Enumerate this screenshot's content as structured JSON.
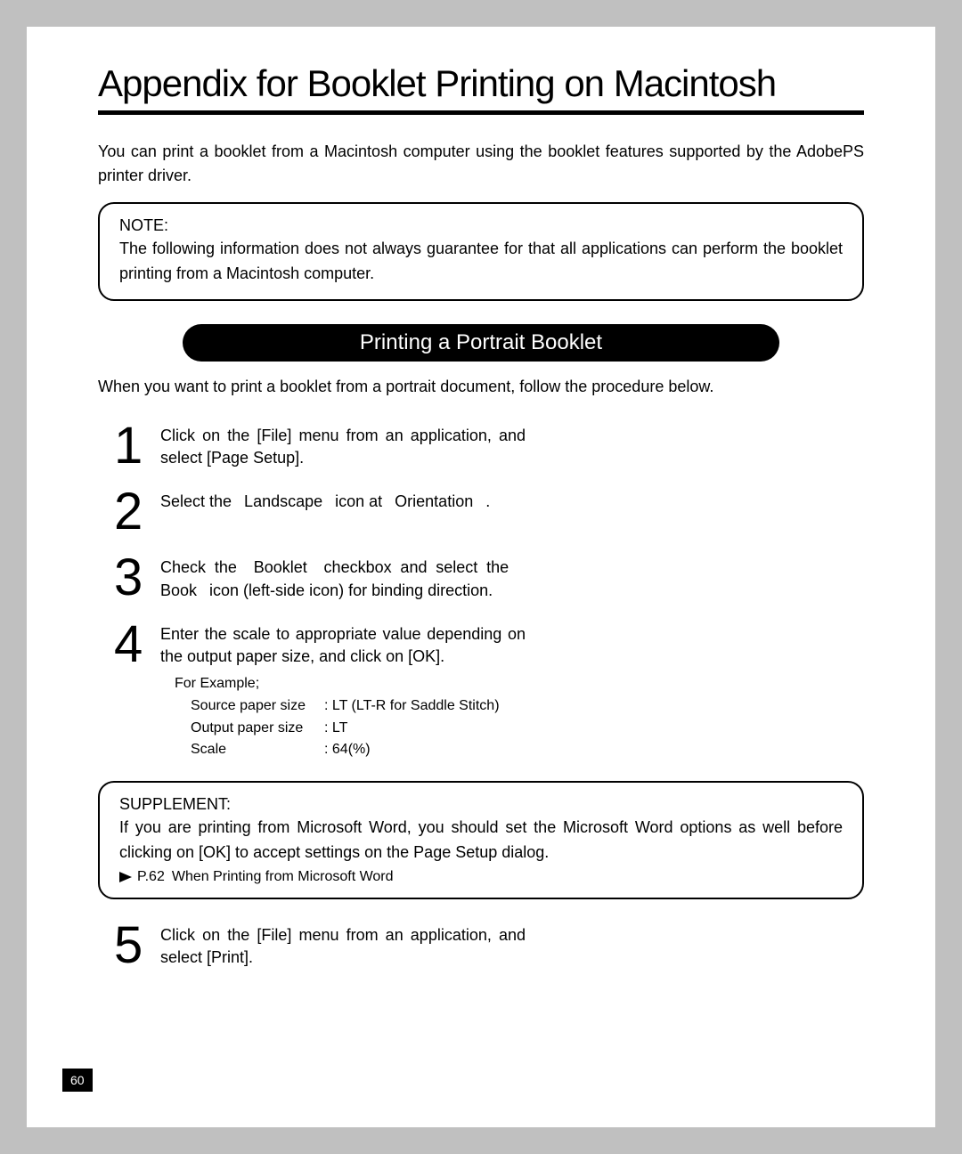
{
  "title": "Appendix for Booklet Printing on Macintosh",
  "intro": "You can print a booklet from a Macintosh computer using the booklet features supported by the AdobePS printer driver.",
  "note": {
    "label": "NOTE:",
    "text": "The following information does not always guarantee for that all applications can perform the booklet printing from a Macintosh computer."
  },
  "section_heading": "Printing a Portrait Booklet",
  "subintro": "When you want to print a booklet from a portrait document, follow the procedure below.",
  "steps": [
    {
      "n": "1",
      "text": "Click on the [File] menu from an application, and select [Page Setup]."
    },
    {
      "n": "2",
      "text": "Select the  Landscape  icon at  Orientation  ."
    },
    {
      "n": "3",
      "text": "Check the  Booklet  checkbox and select the  Book  icon (left-side icon) for binding direction."
    },
    {
      "n": "4",
      "text": "Enter the scale to appropriate value depending on the output paper size, and click on [OK]."
    },
    {
      "n": "5",
      "text": "Click on the [File] menu from an application, and select [Print]."
    }
  ],
  "example": {
    "heading": "For Example;",
    "rows": [
      {
        "k": "Source paper size",
        "v": ": LT (LT-R for Saddle Stitch)"
      },
      {
        "k": "Output paper size",
        "v": ": LT"
      },
      {
        "k": "Scale",
        "v": ": 64(%)"
      }
    ]
  },
  "supplement": {
    "label": "SUPPLEMENT:",
    "text": "If you are printing from Microsoft Word, you should set the Microsoft Word options as well before clicking on [OK] to accept settings on the Page Setup dialog.",
    "ref": "P.62 When Printing from Microsoft Word"
  },
  "page_number": "60"
}
